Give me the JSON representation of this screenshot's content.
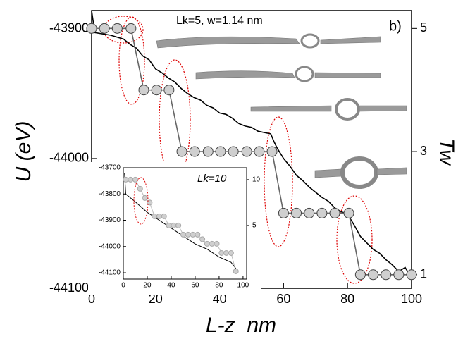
{
  "chart_data": [
    {
      "type": "line",
      "annotation": "Lk=5, w=1.14 nm",
      "panel_label": "b)",
      "xlabel": "L-z  nm",
      "ylabel": "U (eV)",
      "y2label": "Tw",
      "xlim": [
        0,
        100
      ],
      "xticks": [
        0,
        20,
        40,
        60,
        80,
        100
      ],
      "ylim": [
        -44100,
        -43886
      ],
      "yticks": [
        -44100,
        -44000,
        -43900
      ],
      "y2lim": [
        0.78,
        5.29
      ],
      "y2ticks": [
        1,
        3,
        5
      ],
      "series": [
        {
          "color": "#000000",
          "axis": "y",
          "x": [
            0,
            1,
            6,
            10,
            12,
            14,
            16,
            18,
            20,
            22,
            24,
            26,
            28,
            30,
            32,
            34,
            36,
            38,
            40,
            42,
            44,
            46,
            48,
            50,
            52,
            54,
            56,
            57,
            58,
            60,
            62,
            64,
            66,
            68,
            70,
            72,
            74,
            76,
            78,
            80,
            82,
            84,
            86,
            88,
            90,
            92,
            94,
            96,
            98,
            100
          ],
          "values": [
            -43886,
            -43903,
            -43905,
            -43908,
            -43912,
            -43915,
            -43921,
            -43924,
            -43931,
            -43934,
            -43938,
            -43941,
            -43946,
            -43950,
            -43953,
            -43955,
            -43959,
            -43961,
            -43965,
            -43966,
            -43969,
            -43973,
            -43975,
            -43976,
            -43979,
            -43980,
            -43981,
            -43987,
            -43992,
            -44000,
            -44006,
            -44013,
            -44017,
            -44022,
            -44026,
            -44030,
            -44033,
            -44038,
            -44041,
            -44043,
            -44051,
            -44060,
            -44065,
            -44070,
            -44073,
            -44078,
            -44082,
            -44087,
            -44084,
            -44092
          ]
        },
        {
          "color": "#666666",
          "axis": "y2",
          "markers": true,
          "x": [
            0,
            4,
            8,
            12.3,
            16.3,
            20.3,
            24.2,
            28.2,
            32.2,
            36.4,
            40.3,
            44.3,
            48.5,
            52.4,
            56.4,
            60,
            64,
            68,
            72,
            76,
            80.4,
            84,
            88,
            92,
            96,
            100
          ],
          "values": [
            5,
            5,
            5,
            5,
            4,
            4,
            4,
            3,
            3,
            3,
            3,
            3,
            3,
            3,
            3,
            2,
            2,
            2,
            2,
            2,
            2,
            1,
            1,
            1,
            1,
            1
          ]
        }
      ]
    },
    {
      "type": "line",
      "annotation": "Lk=10",
      "xlim": [
        0,
        103
      ],
      "xticks": [
        0,
        20,
        40,
        60,
        80,
        100
      ],
      "ylim": [
        -44124,
        -43700
      ],
      "yticks": [
        -44100,
        -44000,
        -43900,
        -43800,
        -43700
      ],
      "y2lim": [
        -0.85,
        11.3
      ],
      "y2ticks": [
        5,
        10
      ],
      "series": [
        {
          "color": "#000000",
          "axis": "y",
          "x": [
            1,
            2,
            10,
            20,
            30,
            40,
            50,
            60,
            70,
            80,
            90,
            95
          ],
          "values": [
            -43720,
            -43800,
            -43830,
            -43870,
            -43900,
            -43930,
            -43960,
            -43990,
            -44010,
            -44040,
            -44060,
            -44090
          ]
        },
        {
          "color": "#bbbbbb",
          "axis": "y2",
          "markers": true,
          "x": [
            2,
            6,
            10,
            14,
            18,
            22,
            26,
            30,
            34,
            38,
            42,
            46,
            50,
            54,
            58,
            62,
            66,
            70,
            74,
            78,
            82,
            86,
            90,
            94
          ],
          "values": [
            10,
            10,
            10,
            9,
            8,
            7.5,
            6,
            6,
            6,
            5,
            5,
            5,
            4,
            4,
            4,
            4,
            3.5,
            3,
            3,
            3,
            2,
            2,
            2,
            0
          ]
        }
      ]
    }
  ]
}
